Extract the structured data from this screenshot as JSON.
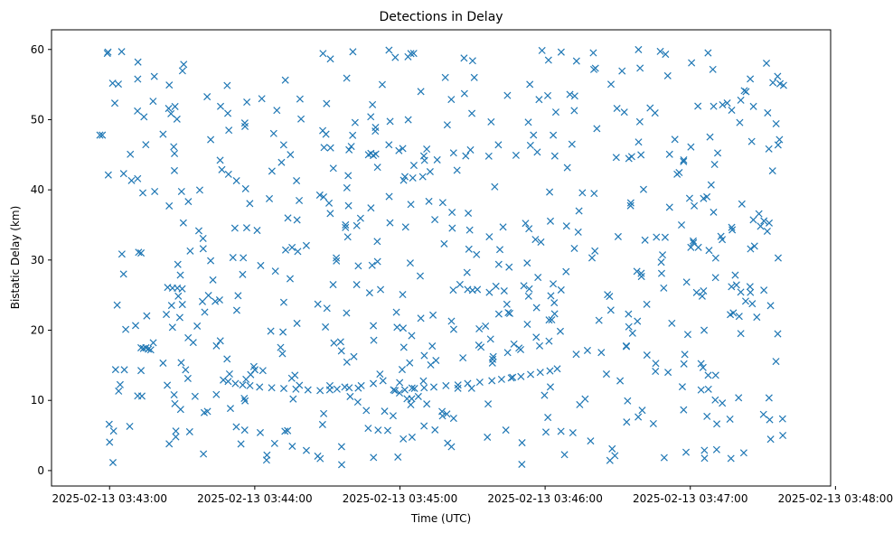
{
  "chart_data": {
    "type": "scatter",
    "title": "Detections in Delay",
    "xlabel": "Time (UTC)",
    "ylabel": "Bistatic Delay (km)",
    "marker": "x",
    "color": "#1f77b4",
    "grid": false,
    "legend": "none",
    "xlim": [
      "2025-02-13 03:42:36",
      "2025-02-13 03:47:58"
    ],
    "ylim": [
      -2.2,
      62.8
    ],
    "x_ticks": [
      "2025-02-13 03:43:00",
      "2025-02-13 03:44:00",
      "2025-02-13 03:45:00",
      "2025-02-13 03:46:00",
      "2025-02-13 03:47:00",
      "2025-02-13 03:48:00"
    ],
    "y_ticks": [
      0,
      10,
      20,
      30,
      40,
      50,
      60
    ],
    "track_points": [
      [
        "03:43:47",
        12.9
      ],
      [
        "03:43:49",
        12.7
      ],
      [
        "03:43:52",
        12.4
      ],
      [
        "03:43:55",
        12.2
      ],
      [
        "03:43:58",
        12.1
      ],
      [
        "03:44:02",
        11.9
      ],
      [
        "03:44:07",
        11.8
      ],
      [
        "03:44:12",
        11.7
      ],
      [
        "03:44:17",
        11.6
      ],
      [
        "03:44:22",
        11.5
      ],
      [
        "03:44:27",
        11.4
      ],
      [
        "03:44:31",
        11.5
      ],
      [
        "03:44:34",
        11.6
      ],
      [
        "03:44:39",
        11.8
      ],
      [
        "03:44:44",
        12.1
      ],
      [
        "03:44:49",
        12.4
      ],
      [
        "03:44:53",
        12.8
      ],
      [
        "03:44:58",
        11.4
      ],
      [
        "03:45:02",
        11.5
      ],
      [
        "03:45:06",
        11.7
      ],
      [
        "03:45:10",
        11.8
      ],
      [
        "03:45:14",
        11.9
      ],
      [
        "03:45:19",
        12.1
      ],
      [
        "03:45:24",
        12.2
      ],
      [
        "03:45:28",
        12.4
      ],
      [
        "03:45:33",
        12.6
      ],
      [
        "03:45:38",
        12.8
      ],
      [
        "03:45:42",
        13.0
      ],
      [
        "03:45:46",
        13.2
      ],
      [
        "03:45:50",
        13.4
      ],
      [
        "03:45:54",
        13.7
      ],
      [
        "03:45:58",
        14.0
      ],
      [
        "03:46:02",
        14.2
      ],
      [
        "03:46:05",
        14.5
      ],
      [
        "03:43:24",
        26.1
      ],
      [
        "03:43:26",
        26.0
      ],
      [
        "03:43:28",
        26.0
      ],
      [
        "03:43:30",
        25.9
      ],
      [
        "03:45:28",
        25.8
      ],
      [
        "03:45:30",
        25.7
      ],
      [
        "03:45:32",
        25.8
      ],
      [
        "03:42:56",
        47.8
      ],
      [
        "03:42:57",
        47.8
      ],
      [
        "03:43:12",
        31.1
      ],
      [
        "03:43:13",
        31.0
      ],
      [
        "03:43:13",
        17.5
      ],
      [
        "03:43:14",
        17.4
      ],
      [
        "03:43:15",
        17.5
      ],
      [
        "03:43:16",
        17.3
      ],
      [
        "03:43:17",
        17.2
      ],
      [
        "03:44:47",
        45.0
      ],
      [
        "03:44:48",
        45.2
      ],
      [
        "03:44:49",
        44.9
      ],
      [
        "03:44:50",
        45.1
      ]
    ],
    "noise_count": 616,
    "noise_seed": 1337
  }
}
